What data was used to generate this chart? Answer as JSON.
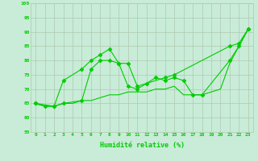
{
  "series1_x": [
    0,
    1,
    2,
    3,
    5,
    6,
    7,
    8,
    9,
    10,
    11,
    14,
    15,
    21,
    22,
    23
  ],
  "series1_y": [
    65,
    64,
    64,
    73,
    77,
    80,
    82,
    84,
    79,
    79,
    71,
    74,
    75,
    85,
    86,
    91
  ],
  "series2_x": [
    0,
    2,
    3,
    5,
    6,
    7,
    8,
    9,
    10,
    11,
    12,
    13,
    14,
    15,
    16,
    17,
    18,
    21,
    22,
    23
  ],
  "series2_y": [
    65,
    64,
    65,
    66,
    77,
    80,
    80,
    79,
    71,
    70,
    72,
    74,
    73,
    74,
    73,
    68,
    68,
    80,
    85,
    91
  ],
  "series3_x": [
    0,
    1,
    2,
    3,
    4,
    5,
    6,
    7,
    8,
    9,
    10,
    11,
    12,
    13,
    14,
    15,
    16,
    17,
    18,
    19,
    20,
    21,
    22,
    23
  ],
  "series3_y": [
    65,
    64,
    64,
    65,
    65,
    66,
    66,
    67,
    68,
    68,
    69,
    69,
    69,
    70,
    70,
    71,
    68,
    68,
    68,
    69,
    70,
    79,
    85,
    91
  ],
  "line_color": "#00cc00",
  "bg_color": "#c8ecd8",
  "grid_color": "#b0c8b0",
  "xlabel": "Humidité relative (%)",
  "ylim": [
    55,
    100
  ],
  "xlim": [
    -0.5,
    23.5
  ],
  "yticks": [
    55,
    60,
    65,
    70,
    75,
    80,
    85,
    90,
    95,
    100
  ],
  "xticks": [
    0,
    1,
    2,
    3,
    4,
    5,
    6,
    7,
    8,
    9,
    10,
    11,
    12,
    13,
    14,
    15,
    16,
    17,
    18,
    19,
    20,
    21,
    22,
    23
  ]
}
